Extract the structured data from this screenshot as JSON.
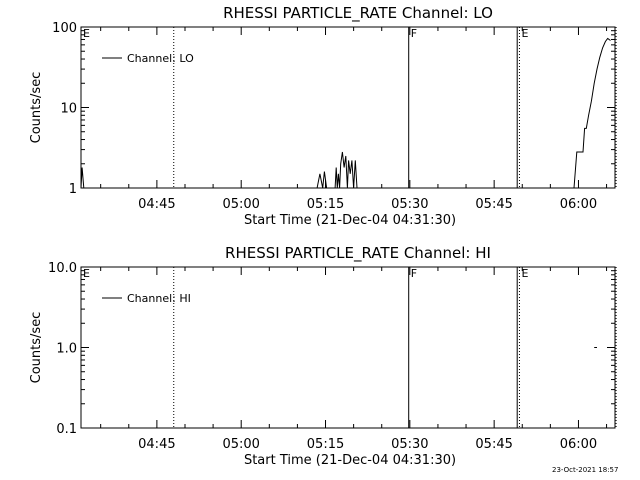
{
  "footer": {
    "timestamp": "23-Oct-2021 18:57"
  },
  "chart_data": [
    {
      "type": "line",
      "title": "RHESSI PARTICLE_RATE Channel: LO",
      "xlabel": "Start Time (21-Dec-04 04:31:30)",
      "ylabel": "Counts/sec",
      "xlim_minutes": [
        0,
        95
      ],
      "ylim": [
        1,
        100
      ],
      "yscale": "log",
      "xticks": [
        {
          "label": "04:45",
          "minutes": 13.5
        },
        {
          "label": "05:00",
          "minutes": 28.5
        },
        {
          "label": "05:15",
          "minutes": 43.5
        },
        {
          "label": "05:30",
          "minutes": 58.5
        },
        {
          "label": "05:45",
          "minutes": 73.5
        },
        {
          "label": "06:00",
          "minutes": 88.5
        }
      ],
      "yticks": [
        {
          "label": "1",
          "value": 1
        },
        {
          "label": "10",
          "value": 10
        },
        {
          "label": "100",
          "value": 100
        }
      ],
      "legend": {
        "entry": "Channel: LO",
        "placement": "top-left"
      },
      "markers": [
        {
          "label": "E",
          "minutes": 0,
          "style": "dotted"
        },
        {
          "label": "",
          "minutes": 16.5,
          "style": "dotted"
        },
        {
          "label": "F",
          "minutes": 58.3,
          "style": "solid"
        },
        {
          "label": "",
          "minutes": 77.6,
          "style": "solid"
        },
        {
          "label": "E",
          "minutes": 78.0,
          "style": "dotted"
        },
        {
          "label": "",
          "minutes": 95.2,
          "style": "dotted"
        }
      ],
      "series": [
        {
          "name": "Channel: LO",
          "segments": [
            [
              [
                0.0,
                1.0
              ],
              [
                0.2,
                1.8
              ],
              [
                0.5,
                1.0
              ]
            ],
            [
              [
                42.0,
                1.0
              ],
              [
                42.5,
                1.5
              ],
              [
                43.0,
                1.0
              ],
              [
                43.3,
                1.6
              ],
              [
                43.7,
                1.0
              ]
            ],
            [
              [
                45.2,
                1.0
              ],
              [
                45.4,
                1.8
              ],
              [
                45.6,
                1.0
              ],
              [
                45.8,
                1.5
              ],
              [
                46.0,
                1.0
              ],
              [
                46.2,
                2.0
              ],
              [
                46.5,
                2.8
              ],
              [
                46.8,
                1.8
              ],
              [
                47.1,
                2.5
              ],
              [
                47.4,
                1.0
              ],
              [
                47.6,
                2.2
              ],
              [
                47.9,
                1.5
              ],
              [
                48.2,
                2.2
              ],
              [
                48.5,
                1.0
              ],
              [
                48.8,
                2.2
              ],
              [
                49.1,
                1.0
              ]
            ],
            [
              [
                87.7,
                1.0
              ],
              [
                88.2,
                2.8
              ],
              [
                89.3,
                2.8
              ],
              [
                89.6,
                5.5
              ],
              [
                89.9,
                5.5
              ],
              [
                90.3,
                8.0
              ],
              [
                90.8,
                12.0
              ],
              [
                91.3,
                20.0
              ],
              [
                91.8,
                30.0
              ],
              [
                92.3,
                42.0
              ],
              [
                92.8,
                55.0
              ],
              [
                93.3,
                66.0
              ],
              [
                93.7,
                72.0
              ],
              [
                94.2,
                68.0
              ]
            ]
          ]
        }
      ]
    },
    {
      "type": "line",
      "title": "RHESSI PARTICLE_RATE Channel: HI",
      "xlabel": "Start Time (21-Dec-04 04:31:30)",
      "ylabel": "Counts/sec",
      "xlim_minutes": [
        0,
        95
      ],
      "ylim": [
        0.1,
        10
      ],
      "yscale": "log",
      "xticks": [
        {
          "label": "04:45",
          "minutes": 13.5
        },
        {
          "label": "05:00",
          "minutes": 28.5
        },
        {
          "label": "05:15",
          "minutes": 43.5
        },
        {
          "label": "05:30",
          "minutes": 58.5
        },
        {
          "label": "05:45",
          "minutes": 73.5
        },
        {
          "label": "06:00",
          "minutes": 88.5
        }
      ],
      "yticks": [
        {
          "label": "0.1",
          "value": 0.1
        },
        {
          "label": "1.0",
          "value": 1
        },
        {
          "label": "10.0",
          "value": 10
        }
      ],
      "legend": {
        "entry": "Channel: HI",
        "placement": "top-left"
      },
      "markers": [
        {
          "label": "E",
          "minutes": 0,
          "style": "dotted"
        },
        {
          "label": "",
          "minutes": 16.5,
          "style": "dotted"
        },
        {
          "label": "F",
          "minutes": 58.3,
          "style": "solid"
        },
        {
          "label": "",
          "minutes": 77.6,
          "style": "solid"
        },
        {
          "label": "E",
          "minutes": 78.0,
          "style": "dotted"
        },
        {
          "label": "",
          "minutes": 95.2,
          "style": "dotted"
        }
      ],
      "series": [
        {
          "name": "Channel: HI",
          "segments": [
            [
              [
                91.3,
                1.0
              ],
              [
                91.8,
                1.0
              ]
            ]
          ]
        }
      ]
    }
  ]
}
